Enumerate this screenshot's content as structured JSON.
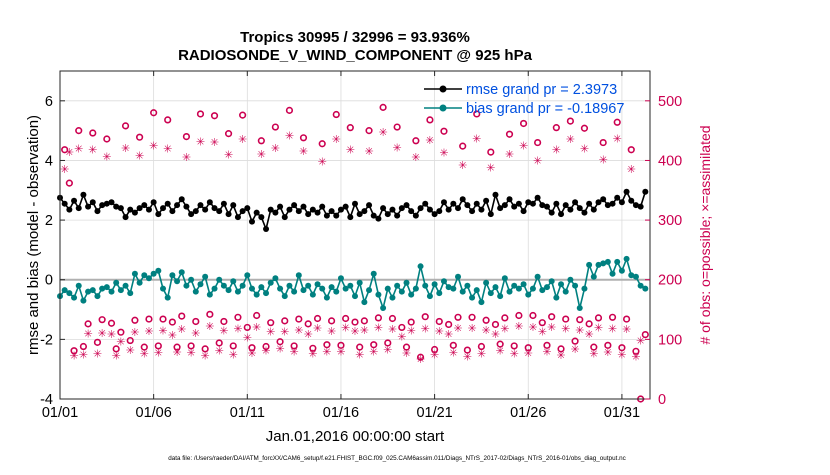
{
  "chart_data": {
    "type": "line",
    "title_line1": "Tropics 30995 / 32996 = 93.936%",
    "title_line2": "RADIOSONDE_V_WIND_COMPONENT @ 925 hPa",
    "xlabel": "Jan.01,2016 00:00:00 start",
    "ylabel_left": "rmse and bias (model - observation)",
    "ylabel_right": "# of obs: o=possible; ×=assimilated",
    "footer": "data file: /Users/raeder/DAI/ATM_forcXX/CAM6_setup/f.e21.FHIST_BGC.f09_025.CAM6assim.011/Diags_NTrS_2017-02/Diags_NTrS_2016-01/obs_diag_output.nc",
    "xlim": [
      1,
      32.5
    ],
    "ylim_left": [
      -4,
      7
    ],
    "ylim_right": [
      0,
      550
    ],
    "x_ticks": [
      1,
      6,
      11,
      16,
      21,
      26,
      31
    ],
    "x_tick_labels": [
      "01/01",
      "01/06",
      "01/11",
      "01/16",
      "01/21",
      "01/26",
      "01/31"
    ],
    "y_left_ticks": [
      -4,
      -2,
      0,
      2,
      4,
      6
    ],
    "y_left_tick_labels": [
      "-4",
      "-2",
      "0",
      "2",
      "4",
      "6"
    ],
    "y_right_ticks": [
      0,
      100,
      200,
      300,
      400,
      500
    ],
    "y_right_tick_labels": [
      "0",
      "100",
      "200",
      "300",
      "400",
      "500"
    ],
    "colors": {
      "rmse": "#000000",
      "bias": "#008080",
      "obs": "#cc0050",
      "zero": "#b0b0b0",
      "legend_text": "#0050e0",
      "grid": "#dcdcdc"
    },
    "legend": [
      {
        "name": "rmse grand pr = 2.3973"
      },
      {
        "name": "bias grand pr = -0.18967"
      }
    ],
    "possible_marker": "o",
    "assimilated_marker": "✳",
    "possible_x": [
      1.25,
      1.5,
      1.75,
      2.0,
      2.25,
      2.5,
      2.75,
      3.0,
      3.25,
      3.5,
      3.75,
      4.0,
      4.25,
      4.5,
      4.75,
      5.0,
      5.25,
      5.5,
      5.75,
      6.0,
      6.25,
      6.5,
      6.75,
      7.0,
      7.25,
      7.5,
      7.75,
      8.0,
      8.25,
      8.5,
      8.75,
      9.0,
      9.25,
      9.5,
      9.75,
      10.0,
      10.25,
      10.5,
      10.75,
      11.0,
      11.25,
      11.5,
      11.75,
      12.0,
      12.25,
      12.5,
      12.75,
      13.0,
      13.25,
      13.5,
      13.75,
      14.0,
      14.25,
      14.5,
      14.75,
      15.0,
      15.25,
      15.5,
      15.75,
      16.0,
      16.25,
      16.5,
      16.75,
      17.0,
      17.25,
      17.5,
      17.75,
      18.0,
      18.25,
      18.5,
      18.75,
      19.0,
      19.25,
      19.5,
      19.75,
      20.0,
      20.25,
      20.5,
      20.75,
      21.0,
      21.25,
      21.5,
      21.75,
      22.0,
      22.25,
      22.5,
      22.75,
      23.0,
      23.25,
      23.5,
      23.75,
      24.0,
      24.25,
      24.5,
      24.75,
      25.0,
      25.25,
      25.5,
      25.75,
      26.0,
      26.25,
      26.5,
      26.75,
      27.0,
      27.25,
      27.5,
      27.75,
      28.0,
      28.25,
      28.5,
      28.75,
      29.0,
      29.25,
      29.5,
      29.75,
      30.0,
      30.25,
      30.5,
      30.75,
      31.0,
      31.25,
      31.5,
      31.75,
      32.0,
      32.25
    ],
    "possible_values": [
      418,
      362,
      81,
      450,
      88,
      126,
      446,
      95,
      133,
      436,
      127,
      84,
      112,
      458,
      98,
      132,
      439,
      87,
      134,
      480,
      89,
      134,
      468,
      129,
      87,
      139,
      440,
      89,
      130,
      478,
      84,
      142,
      475,
      94,
      130,
      445,
      89,
      137,
      476,
      120,
      86,
      140,
      433,
      88,
      128,
      456,
      96,
      131,
      484,
      89,
      134,
      438,
      126,
      85,
      135,
      428,
      91,
      131,
      477,
      90,
      135,
      455,
      129,
      87,
      131,
      450,
      91,
      136,
      489,
      94,
      135,
      456,
      120,
      87,
      129,
      433,
      70,
      138,
      468,
      83,
      130,
      449,
      125,
      90,
      137,
      424,
      82,
      137,
      478,
      88,
      132,
      414,
      125,
      92,
      136,
      444,
      89,
      140,
      462,
      86,
      140,
      430,
      128,
      90,
      138,
      455,
      84,
      134,
      466,
      97,
      133,
      454,
      126,
      87,
      136,
      430,
      90,
      137,
      464,
      86,
      134,
      418,
      80,
      0,
      108
    ],
    "assimilated_x": [
      1.25,
      1.5,
      1.75,
      2.0,
      2.25,
      2.5,
      2.75,
      3.0,
      3.25,
      3.5,
      3.75,
      4.0,
      4.25,
      4.5,
      4.75,
      5.0,
      5.25,
      5.5,
      5.75,
      6.0,
      6.25,
      6.5,
      6.75,
      7.0,
      7.25,
      7.5,
      7.75,
      8.0,
      8.25,
      8.5,
      8.75,
      9.0,
      9.25,
      9.5,
      9.75,
      10.0,
      10.25,
      10.5,
      10.75,
      11.0,
      11.25,
      11.5,
      11.75,
      12.0,
      12.25,
      12.5,
      12.75,
      13.0,
      13.25,
      13.5,
      13.75,
      14.0,
      14.25,
      14.5,
      14.75,
      15.0,
      15.25,
      15.5,
      15.75,
      16.0,
      16.25,
      16.5,
      16.75,
      17.0,
      17.25,
      17.5,
      17.75,
      18.0,
      18.25,
      18.5,
      18.75,
      19.0,
      19.25,
      19.5,
      19.75,
      20.0,
      20.25,
      20.5,
      20.75,
      21.0,
      21.25,
      21.5,
      21.75,
      22.0,
      22.25,
      22.5,
      22.75,
      23.0,
      23.25,
      23.5,
      23.75,
      24.0,
      24.25,
      24.5,
      24.75,
      25.0,
      25.25,
      25.5,
      25.75,
      26.0,
      26.25,
      26.5,
      26.75,
      27.0,
      27.25,
      27.5,
      27.75,
      28.0,
      28.25,
      28.5,
      28.75,
      29.0,
      29.25,
      29.5,
      29.75,
      30.0,
      30.25,
      30.5,
      30.75,
      31.0,
      31.25,
      31.5,
      31.75,
      32.0
    ],
    "assimilated_values": [
      386,
      414,
      73,
      420,
      75,
      110,
      418,
      76,
      111,
      407,
      109,
      73,
      96,
      421,
      82,
      112,
      408,
      76,
      114,
      425,
      78,
      115,
      420,
      107,
      79,
      117,
      406,
      78,
      111,
      432,
      73,
      122,
      431,
      81,
      115,
      410,
      75,
      118,
      436,
      103,
      77,
      121,
      411,
      81,
      113,
      421,
      85,
      113,
      442,
      80,
      116,
      416,
      109,
      76,
      119,
      398,
      80,
      114,
      436,
      80,
      120,
      418,
      114,
      75,
      116,
      416,
      80,
      120,
      448,
      83,
      117,
      422,
      105,
      77,
      115,
      406,
      67,
      118,
      434,
      75,
      114,
      413,
      109,
      78,
      119,
      392,
      71,
      119,
      437,
      76,
      116,
      388,
      109,
      81,
      118,
      411,
      76,
      122,
      425,
      77,
      121,
      400,
      113,
      80,
      121,
      418,
      74,
      118,
      436,
      84,
      116,
      420,
      109,
      76,
      120,
      402,
      79,
      118,
      437,
      75,
      117,
      386,
      71,
      98
    ],
    "rmse_x": [
      1,
      1.25,
      1.5,
      1.75,
      2,
      2.25,
      2.5,
      2.75,
      3,
      3.25,
      3.5,
      3.75,
      4,
      4.25,
      4.5,
      4.75,
      5,
      5.25,
      5.5,
      5.75,
      6,
      6.25,
      6.5,
      6.75,
      7,
      7.25,
      7.5,
      7.75,
      8,
      8.25,
      8.5,
      8.75,
      9,
      9.25,
      9.5,
      9.75,
      10,
      10.25,
      10.5,
      10.75,
      11,
      11.25,
      11.5,
      11.75,
      12,
      12.25,
      12.5,
      12.75,
      13,
      13.25,
      13.5,
      13.75,
      14,
      14.25,
      14.5,
      14.75,
      15,
      15.25,
      15.5,
      15.75,
      16,
      16.25,
      16.5,
      16.75,
      17,
      17.25,
      17.5,
      17.75,
      18,
      18.25,
      18.5,
      18.75,
      19,
      19.25,
      19.5,
      19.75,
      20,
      20.25,
      20.5,
      20.75,
      21,
      21.25,
      21.5,
      21.75,
      22,
      22.25,
      22.5,
      22.75,
      23,
      23.25,
      23.5,
      23.75,
      24,
      24.25,
      24.5,
      24.75,
      25,
      25.25,
      25.5,
      25.75,
      26,
      26.25,
      26.5,
      26.75,
      27,
      27.25,
      27.5,
      27.75,
      28,
      28.25,
      28.5,
      28.75,
      29,
      29.25,
      29.5,
      29.75,
      30,
      30.25,
      30.5,
      30.75,
      31,
      31.25,
      31.5,
      31.75,
      32,
      32.25
    ],
    "rmse_values": [
      2.75,
      2.55,
      2.35,
      2.65,
      2.4,
      2.85,
      2.45,
      2.6,
      2.3,
      2.5,
      2.55,
      2.6,
      2.45,
      2.4,
      2.1,
      2.35,
      2.25,
      2.4,
      2.5,
      2.35,
      2.6,
      2.2,
      2.4,
      2.55,
      2.3,
      2.5,
      2.7,
      2.45,
      2.2,
      2.3,
      2.5,
      2.35,
      2.6,
      2.4,
      2.3,
      2.55,
      2.2,
      2.5,
      2.1,
      2.3,
      2.4,
      1.95,
      2.25,
      2.1,
      1.7,
      2.35,
      2.25,
      2.45,
      2.1,
      2.35,
      2.5,
      2.3,
      2.45,
      2.2,
      2.35,
      2.25,
      2.45,
      2.15,
      2.3,
      2.15,
      2.35,
      2.45,
      2.1,
      2.55,
      2.2,
      2.3,
      2.5,
      2.15,
      2.05,
      2.4,
      2.2,
      2.35,
      2.15,
      2.4,
      2.5,
      2.3,
      2.15,
      2.4,
      2.55,
      2.35,
      2.2,
      2.3,
      2.6,
      2.35,
      2.55,
      2.4,
      2.7,
      2.5,
      2.3,
      2.55,
      2.35,
      2.65,
      2.2,
      2.85,
      2.4,
      2.5,
      2.7,
      2.45,
      2.55,
      2.3,
      2.6,
      2.55,
      2.75,
      2.5,
      2.45,
      2.25,
      2.55,
      2.2,
      2.5,
      2.35,
      2.6,
      2.4,
      2.25,
      2.55,
      2.35,
      2.6,
      2.7,
      2.5,
      2.55,
      2.75,
      2.6,
      2.95,
      2.65,
      2.5,
      2.45,
      2.95
    ],
    "bias_x": [
      1,
      1.25,
      1.5,
      1.75,
      2,
      2.25,
      2.5,
      2.75,
      3,
      3.25,
      3.5,
      3.75,
      4,
      4.25,
      4.5,
      4.75,
      5,
      5.25,
      5.5,
      5.75,
      6,
      6.25,
      6.5,
      6.75,
      7,
      7.25,
      7.5,
      7.75,
      8,
      8.25,
      8.5,
      8.75,
      9,
      9.25,
      9.5,
      9.75,
      10,
      10.25,
      10.5,
      10.75,
      11,
      11.25,
      11.5,
      11.75,
      12,
      12.25,
      12.5,
      12.75,
      13,
      13.25,
      13.5,
      13.75,
      14,
      14.25,
      14.5,
      14.75,
      15,
      15.25,
      15.5,
      15.75,
      16,
      16.25,
      16.5,
      16.75,
      17,
      17.25,
      17.5,
      17.75,
      18,
      18.25,
      18.5,
      18.75,
      19,
      19.25,
      19.5,
      19.75,
      20,
      20.25,
      20.5,
      20.75,
      21,
      21.25,
      21.5,
      21.75,
      22,
      22.25,
      22.5,
      22.75,
      23,
      23.25,
      23.5,
      23.75,
      24,
      24.25,
      24.5,
      24.75,
      25,
      25.25,
      25.5,
      25.75,
      26,
      26.25,
      26.5,
      26.75,
      27,
      27.25,
      27.5,
      27.75,
      28,
      28.25,
      28.5,
      28.75,
      29,
      29.25,
      29.5,
      29.75,
      30,
      30.25,
      30.5,
      30.75,
      31,
      31.25,
      31.5,
      31.75,
      32,
      32.25
    ],
    "bias_values": [
      -0.55,
      -0.35,
      -0.45,
      -0.6,
      -0.2,
      -0.7,
      -0.4,
      -0.35,
      -0.55,
      -0.3,
      -0.25,
      -0.4,
      -0.1,
      -0.35,
      -0.2,
      -0.45,
      0.2,
      -0.1,
      0.15,
      0.05,
      0.2,
      0.3,
      -0.3,
      -0.6,
      0.15,
      -0.05,
      0.25,
      -0.2,
      0.0,
      -0.4,
      -0.15,
      0.1,
      -0.5,
      -0.3,
      0.0,
      -0.2,
      -0.35,
      -0.05,
      -0.4,
      -0.2,
      0.15,
      -0.3,
      -0.5,
      -0.25,
      -0.45,
      -0.1,
      0.05,
      -0.3,
      -0.55,
      -0.2,
      -0.4,
      0.15,
      -0.35,
      -0.2,
      -0.5,
      -0.15,
      -0.3,
      -0.6,
      -0.25,
      -0.4,
      0.05,
      -0.3,
      -0.2,
      -0.55,
      -0.1,
      -0.75,
      -0.35,
      0.2,
      -0.5,
      -0.95,
      -0.3,
      -0.6,
      -0.2,
      -0.4,
      -0.1,
      -0.5,
      -0.3,
      0.45,
      -0.2,
      -0.55,
      -0.15,
      -0.45,
      -0.05,
      -0.25,
      -0.3,
      0.1,
      -0.4,
      -0.2,
      -0.6,
      -0.35,
      -0.75,
      -0.1,
      -0.45,
      -0.25,
      -0.55,
      0.05,
      -0.4,
      -0.2,
      -0.3,
      -0.15,
      -0.5,
      -0.3,
      0.1,
      -0.35,
      -0.25,
      -0.05,
      -0.6,
      -0.15,
      -0.4,
      0.0,
      -0.2,
      -0.95,
      -0.3,
      0.5,
      0.1,
      0.5,
      0.55,
      0.6,
      0.2,
      0.6,
      0.3,
      0.7,
      0.15,
      0.1,
      -0.2,
      -0.3
    ]
  }
}
